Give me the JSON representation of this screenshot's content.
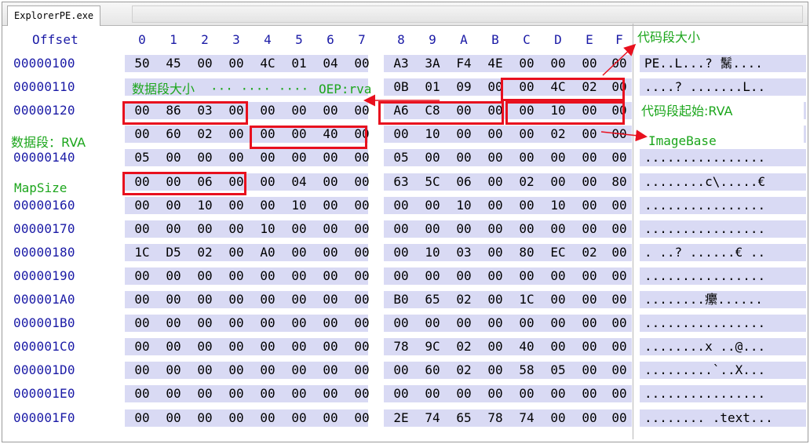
{
  "window": {
    "tab_title": "ExplorerPE.exe"
  },
  "header": {
    "offset_label": "Offset",
    "columns": [
      "0",
      "1",
      "2",
      "3",
      "4",
      "5",
      "6",
      "7",
      "8",
      "9",
      "A",
      "B",
      "C",
      "D",
      "E",
      "F"
    ]
  },
  "rows": [
    {
      "offset": "00000100",
      "hex": [
        "50",
        "45",
        "00",
        "00",
        "4C",
        "01",
        "04",
        "00",
        "A3",
        "3A",
        "F4",
        "4E",
        "00",
        "00",
        "00",
        "00"
      ],
      "ascii": "PE..L...? 鬗...."
    },
    {
      "offset": "00000110",
      "hex": [
        "",
        "",
        "",
        "",
        "",
        "",
        "",
        "",
        "0B",
        "01",
        "09",
        "00",
        "00",
        "4C",
        "02",
        "00"
      ],
      "ascii": "....? .......L.."
    },
    {
      "offset": "00000120",
      "hex": [
        "00",
        "86",
        "03",
        "00",
        "00",
        "00",
        "00",
        "00",
        "A6",
        "C8",
        "00",
        "00",
        "00",
        "10",
        "00",
        "00"
      ],
      "ascii": ""
    },
    {
      "offset": "",
      "hex": [
        "00",
        "60",
        "02",
        "00",
        "00",
        "00",
        "40",
        "00",
        "00",
        "10",
        "00",
        "00",
        "00",
        "02",
        "00",
        "00"
      ],
      "ascii": ""
    },
    {
      "offset": "00000140",
      "hex": [
        "05",
        "00",
        "00",
        "00",
        "00",
        "00",
        "00",
        "00",
        "05",
        "00",
        "00",
        "00",
        "00",
        "00",
        "00",
        "00"
      ],
      "ascii": "................"
    },
    {
      "offset": "",
      "hex": [
        "00",
        "00",
        "06",
        "00",
        "00",
        "04",
        "00",
        "00",
        "63",
        "5C",
        "06",
        "00",
        "02",
        "00",
        "00",
        "80"
      ],
      "ascii": "........c\\.....€"
    },
    {
      "offset": "00000160",
      "hex": [
        "00",
        "00",
        "10",
        "00",
        "00",
        "10",
        "00",
        "00",
        "00",
        "00",
        "10",
        "00",
        "00",
        "10",
        "00",
        "00"
      ],
      "ascii": "................"
    },
    {
      "offset": "00000170",
      "hex": [
        "00",
        "00",
        "00",
        "00",
        "10",
        "00",
        "00",
        "00",
        "00",
        "00",
        "00",
        "00",
        "00",
        "00",
        "00",
        "00"
      ],
      "ascii": "................"
    },
    {
      "offset": "00000180",
      "hex": [
        "1C",
        "D5",
        "02",
        "00",
        "A0",
        "00",
        "00",
        "00",
        "00",
        "10",
        "03",
        "00",
        "80",
        "EC",
        "02",
        "00"
      ],
      "ascii": ". ..? ......€ .."
    },
    {
      "offset": "00000190",
      "hex": [
        "00",
        "00",
        "00",
        "00",
        "00",
        "00",
        "00",
        "00",
        "00",
        "00",
        "00",
        "00",
        "00",
        "00",
        "00",
        "00"
      ],
      "ascii": "................"
    },
    {
      "offset": "000001A0",
      "hex": [
        "00",
        "00",
        "00",
        "00",
        "00",
        "00",
        "00",
        "00",
        "B0",
        "65",
        "02",
        "00",
        "1C",
        "00",
        "00",
        "00"
      ],
      "ascii": "........癳......"
    },
    {
      "offset": "000001B0",
      "hex": [
        "00",
        "00",
        "00",
        "00",
        "00",
        "00",
        "00",
        "00",
        "00",
        "00",
        "00",
        "00",
        "00",
        "00",
        "00",
        "00"
      ],
      "ascii": "................"
    },
    {
      "offset": "000001C0",
      "hex": [
        "00",
        "00",
        "00",
        "00",
        "00",
        "00",
        "00",
        "00",
        "78",
        "9C",
        "02",
        "00",
        "40",
        "00",
        "00",
        "00"
      ],
      "ascii": "........x ..@..."
    },
    {
      "offset": "000001D0",
      "hex": [
        "00",
        "00",
        "00",
        "00",
        "00",
        "00",
        "00",
        "00",
        "00",
        "60",
        "02",
        "00",
        "58",
        "05",
        "00",
        "00"
      ],
      "ascii": ".........`..X..."
    },
    {
      "offset": "000001E0",
      "hex": [
        "00",
        "00",
        "00",
        "00",
        "00",
        "00",
        "00",
        "00",
        "00",
        "00",
        "00",
        "00",
        "00",
        "00",
        "00",
        "00"
      ],
      "ascii": "................"
    },
    {
      "offset": "000001F0",
      "hex": [
        "00",
        "00",
        "00",
        "00",
        "00",
        "00",
        "00",
        "00",
        "2E",
        "74",
        "65",
        "78",
        "74",
        "00",
        "00",
        "00"
      ],
      "ascii": "........ .text..."
    }
  ],
  "annotations": {
    "code_size": "代码段大小",
    "data_size": "数据段大小",
    "dots": "··· ···· ····",
    "oep_rva": "OEP:rva",
    "code_start_rva": "代码段起始:RVA",
    "data_rva": "数据段：RVA",
    "image_base": "ImageBase",
    "map_size": "MapSize"
  },
  "colors": {
    "highlight_box": "#e8101e",
    "note_text": "#1ca61c",
    "offset_text": "#1a1aa6",
    "hex_band": "#d9daf4"
  }
}
